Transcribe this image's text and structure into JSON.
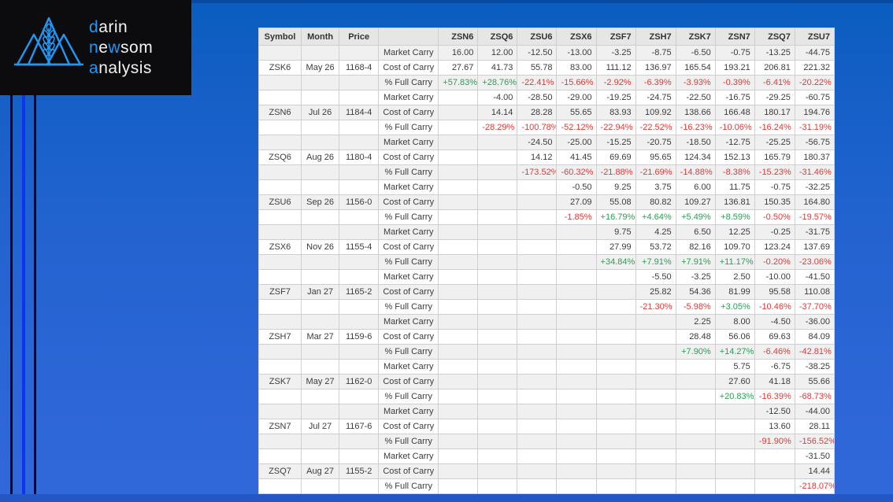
{
  "logo": {
    "lines": [
      {
        "parts": [
          {
            "t": "d",
            "accent": true
          },
          {
            "t": "arin",
            "accent": false
          }
        ]
      },
      {
        "parts": [
          {
            "t": "n",
            "accent": true
          },
          {
            "t": "e",
            "accent": false
          },
          {
            "t": "w",
            "accent": true
          },
          {
            "t": "som",
            "accent": false
          }
        ]
      },
      {
        "parts": [
          {
            "t": "a",
            "accent": true
          },
          {
            "t": "nalysis",
            "accent": false
          }
        ]
      }
    ],
    "accent_color": "#2196f3"
  },
  "colors": {
    "background_blue": "#2c66d6",
    "logo_black": "#0c0c0e",
    "positive_green": "#2aa054",
    "negative_red": "#e13a36",
    "stripe_gray": "#f0f0f0",
    "header_gray": "#e6e6e6"
  },
  "chart_data": {
    "type": "table",
    "columns": [
      "Symbol",
      "Month",
      "Price",
      "",
      "ZSN6",
      "ZSQ6",
      "ZSU6",
      "ZSX6",
      "ZSF7",
      "ZSH7",
      "ZSK7",
      "ZSN7",
      "ZSQ7",
      "ZSU7"
    ],
    "row_labels": {
      "market": "Market Carry",
      "cost": "Cost of Carry",
      "pct": "% Full Carry"
    },
    "groups": [
      {
        "symbol": "ZSK6",
        "month": "May 26",
        "price": "1168-4",
        "market_carry": [
          "16.00",
          "12.00",
          "-12.50",
          "-13.00",
          "-3.25",
          "-8.75",
          "-6.50",
          "-0.75",
          "-13.25",
          "-44.75"
        ],
        "cost_of_carry": [
          "27.67",
          "41.73",
          "55.78",
          "83.00",
          "111.12",
          "136.97",
          "165.54",
          "193.21",
          "206.81",
          "221.32"
        ],
        "pct_full_carry": [
          "+57.83%",
          "+28.76%",
          "-22.41%",
          "-15.66%",
          "-2.92%",
          "-6.39%",
          "-3.93%",
          "-0.39%",
          "-6.41%",
          "-20.22%"
        ]
      },
      {
        "symbol": "ZSN6",
        "month": "Jul 26",
        "price": "1184-4",
        "market_carry": [
          "",
          "-4.00",
          "-28.50",
          "-29.00",
          "-19.25",
          "-24.75",
          "-22.50",
          "-16.75",
          "-29.25",
          "-60.75"
        ],
        "cost_of_carry": [
          "",
          "14.14",
          "28.28",
          "55.65",
          "83.93",
          "109.92",
          "138.66",
          "166.48",
          "180.17",
          "194.76"
        ],
        "pct_full_carry": [
          "",
          "-28.29%",
          "-100.78%",
          "-52.12%",
          "-22.94%",
          "-22.52%",
          "-16.23%",
          "-10.06%",
          "-16.24%",
          "-31.19%"
        ]
      },
      {
        "symbol": "ZSQ6",
        "month": "Aug 26",
        "price": "1180-4",
        "market_carry": [
          "",
          "",
          "-24.50",
          "-25.00",
          "-15.25",
          "-20.75",
          "-18.50",
          "-12.75",
          "-25.25",
          "-56.75"
        ],
        "cost_of_carry": [
          "",
          "",
          "14.12",
          "41.45",
          "69.69",
          "95.65",
          "124.34",
          "152.13",
          "165.79",
          "180.37"
        ],
        "pct_full_carry": [
          "",
          "",
          "-173.52%",
          "-60.32%",
          "-21.88%",
          "-21.69%",
          "-14.88%",
          "-8.38%",
          "-15.23%",
          "-31.46%"
        ]
      },
      {
        "symbol": "ZSU6",
        "month": "Sep 26",
        "price": "1156-0",
        "market_carry": [
          "",
          "",
          "",
          "-0.50",
          "9.25",
          "3.75",
          "6.00",
          "11.75",
          "-0.75",
          "-32.25"
        ],
        "cost_of_carry": [
          "",
          "",
          "",
          "27.09",
          "55.08",
          "80.82",
          "109.27",
          "136.81",
          "150.35",
          "164.80"
        ],
        "pct_full_carry": [
          "",
          "",
          "",
          "-1.85%",
          "+16.79%",
          "+4.64%",
          "+5.49%",
          "+8.59%",
          "-0.50%",
          "-19.57%"
        ]
      },
      {
        "symbol": "ZSX6",
        "month": "Nov 26",
        "price": "1155-4",
        "market_carry": [
          "",
          "",
          "",
          "",
          "9.75",
          "4.25",
          "6.50",
          "12.25",
          "-0.25",
          "-31.75"
        ],
        "cost_of_carry": [
          "",
          "",
          "",
          "",
          "27.99",
          "53.72",
          "82.16",
          "109.70",
          "123.24",
          "137.69"
        ],
        "pct_full_carry": [
          "",
          "",
          "",
          "",
          "+34.84%",
          "+7.91%",
          "+7.91%",
          "+11.17%",
          "-0.20%",
          "-23.06%"
        ]
      },
      {
        "symbol": "ZSF7",
        "month": "Jan 27",
        "price": "1165-2",
        "market_carry": [
          "",
          "",
          "",
          "",
          "",
          "-5.50",
          "-3.25",
          "2.50",
          "-10.00",
          "-41.50"
        ],
        "cost_of_carry": [
          "",
          "",
          "",
          "",
          "",
          "25.82",
          "54.36",
          "81.99",
          "95.58",
          "110.08"
        ],
        "pct_full_carry": [
          "",
          "",
          "",
          "",
          "",
          "-21.30%",
          "-5.98%",
          "+3.05%",
          "-10.46%",
          "-37.70%"
        ]
      },
      {
        "symbol": "ZSH7",
        "month": "Mar 27",
        "price": "1159-6",
        "market_carry": [
          "",
          "",
          "",
          "",
          "",
          "",
          "2.25",
          "8.00",
          "-4.50",
          "-36.00"
        ],
        "cost_of_carry": [
          "",
          "",
          "",
          "",
          "",
          "",
          "28.48",
          "56.06",
          "69.63",
          "84.09"
        ],
        "pct_full_carry": [
          "",
          "",
          "",
          "",
          "",
          "",
          "+7.90%",
          "+14.27%",
          "-6.46%",
          "-42.81%"
        ]
      },
      {
        "symbol": "ZSK7",
        "month": "May 27",
        "price": "1162-0",
        "market_carry": [
          "",
          "",
          "",
          "",
          "",
          "",
          "",
          "5.75",
          "-6.75",
          "-38.25"
        ],
        "cost_of_carry": [
          "",
          "",
          "",
          "",
          "",
          "",
          "",
          "27.60",
          "41.18",
          "55.66"
        ],
        "pct_full_carry": [
          "",
          "",
          "",
          "",
          "",
          "",
          "",
          "+20.83%",
          "-16.39%",
          "-68.73%"
        ]
      },
      {
        "symbol": "ZSN7",
        "month": "Jul 27",
        "price": "1167-6",
        "market_carry": [
          "",
          "",
          "",
          "",
          "",
          "",
          "",
          "",
          "-12.50",
          "-44.00"
        ],
        "cost_of_carry": [
          "",
          "",
          "",
          "",
          "",
          "",
          "",
          "",
          "13.60",
          "28.11"
        ],
        "pct_full_carry": [
          "",
          "",
          "",
          "",
          "",
          "",
          "",
          "",
          "-91.90%",
          "-156.52%"
        ]
      },
      {
        "symbol": "ZSQ7",
        "month": "Aug 27",
        "price": "1155-2",
        "market_carry": [
          "",
          "",
          "",
          "",
          "",
          "",
          "",
          "",
          "",
          "-31.50"
        ],
        "cost_of_carry": [
          "",
          "",
          "",
          "",
          "",
          "",
          "",
          "",
          "",
          "14.44"
        ],
        "pct_full_carry": [
          "",
          "",
          "",
          "",
          "",
          "",
          "",
          "",
          "",
          "-218.07%"
        ]
      }
    ]
  }
}
